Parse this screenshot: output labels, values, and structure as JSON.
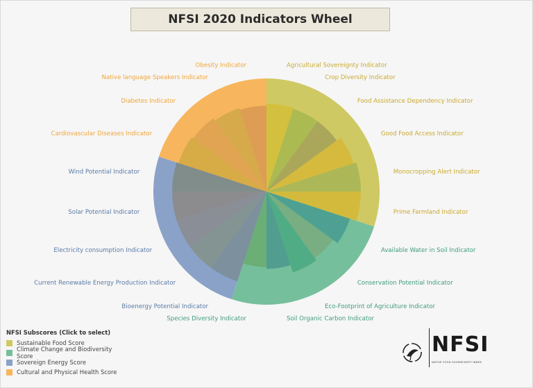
{
  "title": "NFSI 2020 Indicators Wheel",
  "legend": {
    "title": "NFSI Subscores (Click to select)",
    "items": [
      {
        "label": "Sustainable Food Score",
        "color": "#cfc964"
      },
      {
        "label": "Climate Change and Biodiversity Score",
        "color": "#76bf9c"
      },
      {
        "label": "Sovereign Energy Score",
        "color": "#8aa2c8"
      },
      {
        "label": "Cultural and Physical Health Score",
        "color": "#f7b65d"
      }
    ]
  },
  "logo": {
    "text": "NFSI",
    "subtitle": "NATIVE FOOD SOVEREIGNTY INDEX"
  },
  "chart_data": {
    "type": "pie",
    "title": "NFSI 2020 Indicators Wheel",
    "groups": [
      {
        "name": "Sustainable Food Score",
        "color": "#cfc964",
        "indicators": [
          "Agricultural Sovereignty Indicator",
          "Crop Diversity Indicator",
          "Food Assistance Dependency Indicator",
          "Good Food Access Indicator",
          "Monocropping Alert Indicator",
          "Prime Farmland Indicator"
        ]
      },
      {
        "name": "Climate Change and Biodiversity Score",
        "color": "#76bf9c",
        "indicators": [
          "Available Water in Soil Indicator",
          "Conservation Potential Indicator",
          "Eco-Footprint of Agriculture Indicator",
          "Soil Organic Carbon Indicator",
          "Species Diversity Indicator"
        ]
      },
      {
        "name": "Sovereign Energy Score",
        "color": "#8aa2c8",
        "indicators": [
          "Bioenergy Potential Indicator",
          "Current Renewable Energy Production Indicator",
          "Electricity consumption Indicator",
          "Solar Potential Indicator",
          "Wind Potential Indicator"
        ]
      },
      {
        "name": "Cultural and Physical Health Score",
        "color": "#f7b65d",
        "indicators": [
          "Cardiovascular Diseases Indicator",
          "Diabetes Indicator",
          "Native language Speakers Indicator",
          "Obesity Indicator"
        ]
      }
    ],
    "slices": [
      {
        "label": "Agricultural Sovereignty Indicator",
        "value": 0.93,
        "color": "#d4bf3c"
      },
      {
        "label": "Crop Diversity Indicator",
        "value": 0.92,
        "color": "#a8b94f"
      },
      {
        "label": "Food Assistance Dependency Indicator",
        "value": 0.92,
        "color": "#a7a45a"
      },
      {
        "label": "Good Food Access Indicator",
        "value": 0.97,
        "color": "#d6b83b"
      },
      {
        "label": "Monocropping Alert Indicator",
        "value": 1.0,
        "color": "#a9b656"
      },
      {
        "label": "Prime Farmland Indicator",
        "value": 1.0,
        "color": "#d4b83a"
      },
      {
        "label": "Available Water in Soil Indicator",
        "value": 0.93,
        "color": "#4b9e91"
      },
      {
        "label": "Conservation Potential Indicator",
        "value": 0.87,
        "color": "#79ad80"
      },
      {
        "label": "Eco-Footprint of Agriculture Indicator",
        "value": 0.9,
        "color": "#4daa83"
      },
      {
        "label": "Soil Organic Carbon Indicator",
        "value": 0.82,
        "color": "#4e9b8f"
      },
      {
        "label": "Species Diversity Indicator",
        "value": 0.8,
        "color": "#6aac73"
      },
      {
        "label": "Bioenergy Potential Indicator",
        "value": 1.0,
        "color": "#7b8e9a"
      },
      {
        "label": "Current Renewable Energy Production Indicator",
        "value": 1.0,
        "color": "#83938d"
      },
      {
        "label": "Electricity consumption Indicator",
        "value": 1.0,
        "color": "#8a8d92"
      },
      {
        "label": "Solar Potential Indicator",
        "value": 1.0,
        "color": "#8c8a8a"
      },
      {
        "label": "Wind Potential Indicator",
        "value": 1.0,
        "color": "#7f8b86"
      },
      {
        "label": "Cardiovascular Diseases Indicator",
        "value": 0.98,
        "color": "#d4aa44"
      },
      {
        "label": "Diabetes Indicator",
        "value": 0.96,
        "color": "#dda351"
      },
      {
        "label": "Native language Speakers Indicator",
        "value": 0.93,
        "color": "#d3a84a"
      },
      {
        "label": "Obesity Indicator",
        "value": 0.91,
        "color": "#db9b54"
      }
    ]
  }
}
